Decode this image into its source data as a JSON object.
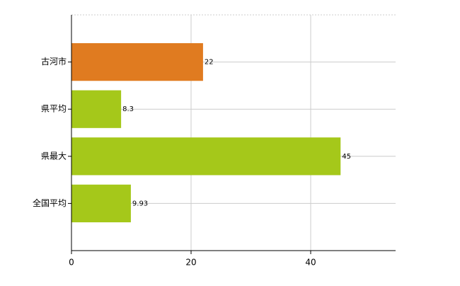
{
  "chart_data": {
    "type": "bar",
    "orientation": "horizontal",
    "categories": [
      "古河市",
      "県平均",
      "県最大",
      "全国平均"
    ],
    "values": [
      22,
      8.3,
      45,
      9.93
    ],
    "colors": [
      "#e07b20",
      "#a5c81a",
      "#a5c81a",
      "#a5c81a"
    ],
    "xlim": [
      0,
      54.2
    ],
    "xticks": [
      0,
      20,
      40
    ],
    "grid": true
  }
}
